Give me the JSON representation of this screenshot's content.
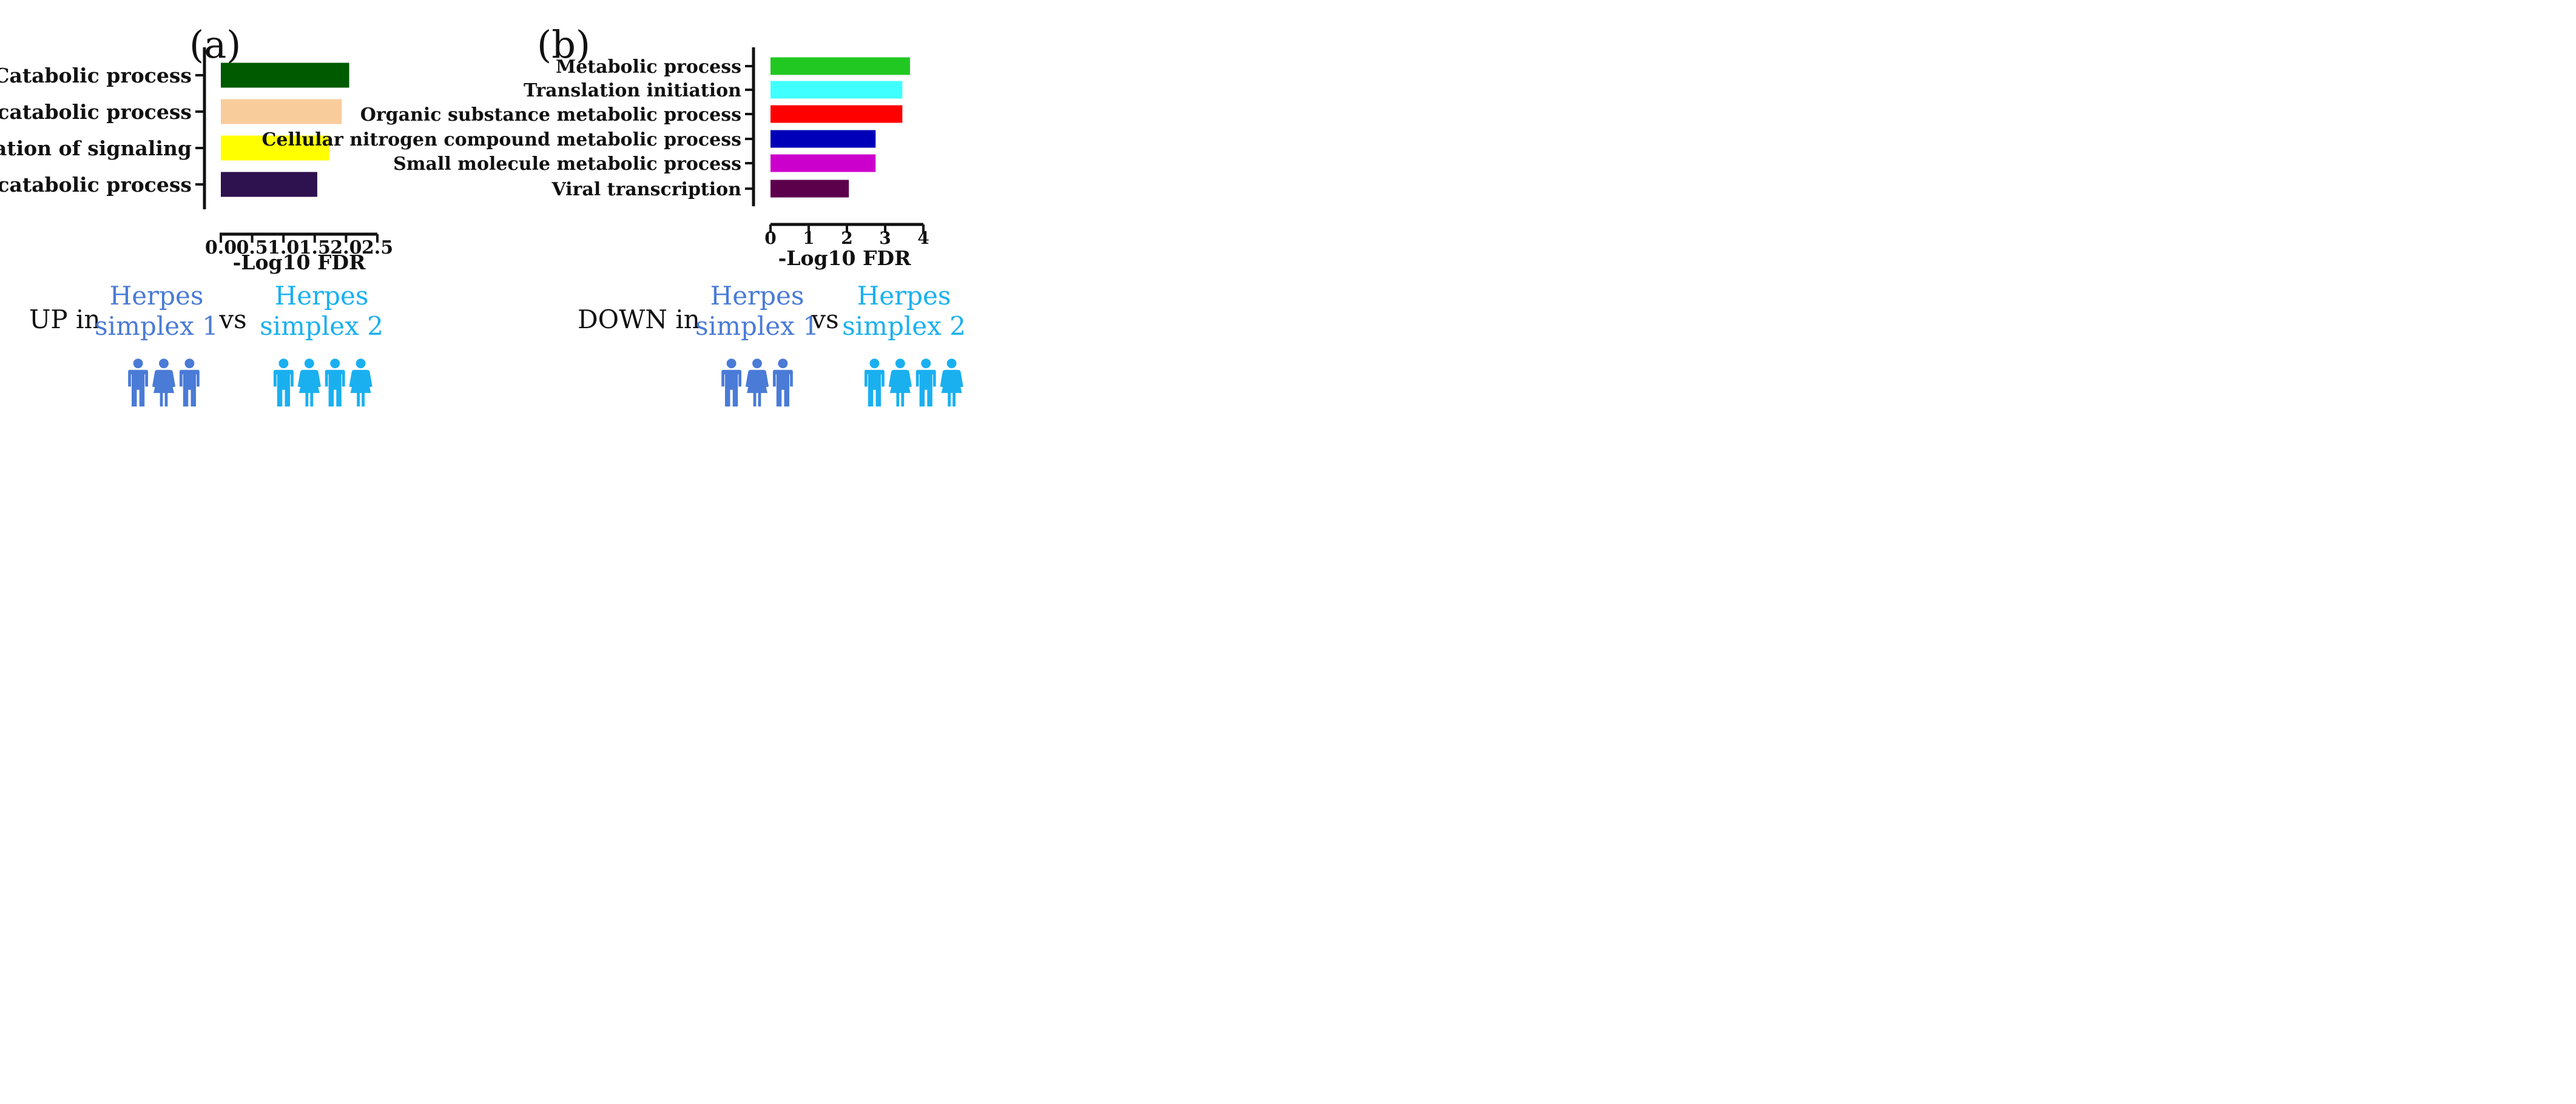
{
  "colors": {
    "herpes1": "#4a7bd6",
    "herpes2": "#1ab0f0",
    "axis": "#111111",
    "text": "#111111"
  },
  "chart_data": [
    {
      "panel_label": "(a)",
      "type": "bar",
      "orientation": "horizontal",
      "categories": [
        "Catabolic process",
        "Organic substance catabolic process",
        "Regulation of signaling",
        "Cellular catabolic process"
      ],
      "values": [
        2.05,
        1.93,
        1.73,
        1.54
      ],
      "colors": [
        "#005a00",
        "#f9cc9c",
        "#ffff00",
        "#2e114f"
      ],
      "xlabel": "-Log10 FDR",
      "xlim": [
        0,
        2.5
      ],
      "ticks": [
        0.0,
        0.5,
        1.0,
        1.5,
        2.0,
        2.5
      ],
      "tick_labels": [
        "0.0",
        "0.5",
        "1.0",
        "1.5",
        "2.0",
        "2.5"
      ],
      "grid": false
    },
    {
      "panel_label": "(b)",
      "type": "bar",
      "orientation": "horizontal",
      "categories": [
        "Metabolic process",
        "Translation initiation",
        "Organic substance metabolic process",
        "Cellular nitrogen compound metabolic process",
        "Small molecule metabolic process",
        "Viral transcription"
      ],
      "values": [
        3.65,
        3.45,
        3.45,
        2.75,
        2.75,
        2.05
      ],
      "colors": [
        "#22c822",
        "#40ffff",
        "#ff0000",
        "#0000b8",
        "#cc00cc",
        "#5c004c"
      ],
      "xlabel": "-Log10 FDR",
      "xlim": [
        0,
        4
      ],
      "ticks": [
        0,
        1,
        2,
        3,
        4
      ],
      "tick_labels": [
        "0",
        "1",
        "2",
        "3",
        "4"
      ],
      "grid": false
    }
  ],
  "comparisons": [
    {
      "direction": "UP in",
      "group1_line1": "Herpes",
      "group1_line2": "simplex 1",
      "vs": "vs",
      "group2_line1": "Herpes",
      "group2_line2": "simplex 2",
      "group1_people_icon": "people-group-3-icon",
      "group2_people_icon": "people-group-4-icon"
    },
    {
      "direction": "DOWN in",
      "group1_line1": "Herpes",
      "group1_line2": "simplex 1",
      "vs": "vs",
      "group2_line1": "Herpes",
      "group2_line2": "simplex 2",
      "group1_people_icon": "people-group-3-icon",
      "group2_people_icon": "people-group-4-icon"
    }
  ]
}
